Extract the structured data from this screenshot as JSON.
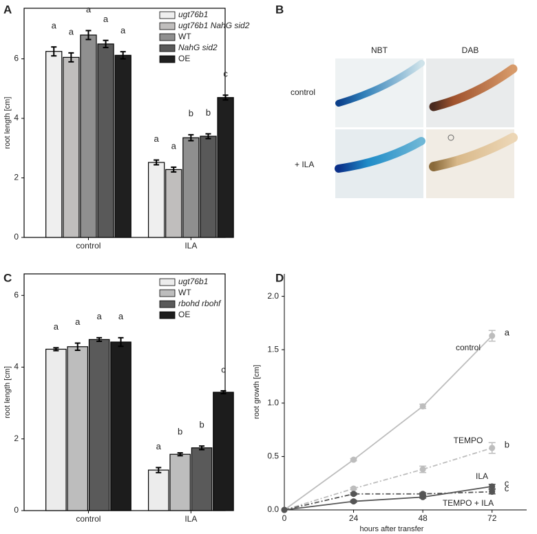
{
  "chart_data": [
    {
      "type": "bar",
      "panel": "A",
      "y_label": "root length [cm]",
      "categories": [
        "control",
        "ILA"
      ],
      "ylim": [
        0,
        7.7
      ],
      "yticks": [
        0,
        2,
        4,
        6
      ],
      "series": [
        {
          "name": "ugt76b1",
          "color": "#efefef",
          "values": [
            6.25,
            2.52
          ],
          "errors": [
            0.15,
            0.08
          ],
          "letters": [
            "a",
            "a"
          ]
        },
        {
          "name": "ugt76b1 NahG sid2",
          "color": "#c0bebd",
          "values": [
            6.05,
            2.28
          ],
          "errors": [
            0.15,
            0.08
          ],
          "letters": [
            "a",
            "a"
          ]
        },
        {
          "name": "WT",
          "color": "#8f8f8f",
          "values": [
            6.8,
            3.35
          ],
          "errors": [
            0.15,
            0.1
          ],
          "letters": [
            "a",
            "b"
          ]
        },
        {
          "name": "NahG sid2",
          "color": "#595959",
          "values": [
            6.5,
            3.4
          ],
          "errors": [
            0.12,
            0.08
          ],
          "letters": [
            "a",
            "b"
          ]
        },
        {
          "name": "OE",
          "color": "#1f1f1f",
          "values": [
            6.12,
            4.7
          ],
          "errors": [
            0.12,
            0.08
          ],
          "letters": [
            "a",
            "c"
          ]
        }
      ]
    },
    {
      "type": "bar",
      "panel": "C",
      "y_label": "root length [cm]",
      "categories": [
        "control",
        "ILA"
      ],
      "ylim": [
        0,
        6.6
      ],
      "yticks": [
        0,
        2,
        4,
        6
      ],
      "series": [
        {
          "name": "ugt76b1",
          "color": "#ececec",
          "values": [
            4.5,
            1.13
          ],
          "errors": [
            0.04,
            0.07
          ],
          "letters": [
            "a",
            "a"
          ]
        },
        {
          "name": "WT",
          "color": "#bdbdbd",
          "values": [
            4.57,
            1.57
          ],
          "errors": [
            0.1,
            0.04
          ],
          "letters": [
            "a",
            "b"
          ]
        },
        {
          "name": "rbohd rbohf",
          "color": "#5a5a5a",
          "values": [
            4.77,
            1.75
          ],
          "errors": [
            0.05,
            0.05
          ],
          "letters": [
            "a",
            "b"
          ]
        },
        {
          "name": "OE",
          "color": "#1c1c1c",
          "values": [
            4.7,
            3.3
          ],
          "errors": [
            0.12,
            0.04
          ],
          "letters": [
            "a",
            "c"
          ]
        }
      ]
    },
    {
      "type": "line",
      "panel": "D",
      "x_label": "hours after transfer",
      "y_label": "root growth [cm]",
      "x": [
        0,
        24,
        48,
        72
      ],
      "xlim": [
        0,
        84
      ],
      "xticks": [
        0,
        24,
        48,
        72
      ],
      "ylim": [
        0,
        2.21
      ],
      "yticks": [
        {
          "value": 0,
          "label": "0.0"
        },
        {
          "value": 0.5,
          "label": "0.5"
        },
        {
          "value": 1,
          "label": "1.0"
        },
        {
          "value": 1.5,
          "label": "1.5"
        },
        {
          "value": 2,
          "label": "2.0"
        }
      ],
      "series": [
        {
          "name": "control",
          "color": "#bdbdbd",
          "dashed": false,
          "values": [
            0,
            0.47,
            0.97,
            1.63
          ],
          "errors": [
            0,
            0.01,
            0.02,
            0.05
          ],
          "letter": "a"
        },
        {
          "name": "TEMPO",
          "color": "#bdbdbd",
          "dashed": true,
          "values": [
            0,
            0.2,
            0.38,
            0.58
          ],
          "errors": [
            0,
            0.01,
            0.03,
            0.05
          ],
          "letter": "b"
        },
        {
          "name": "ILA",
          "color": "#555555",
          "dashed": false,
          "values": [
            0,
            0.08,
            0.12,
            0.22
          ],
          "errors": [
            0,
            0.01,
            0.01,
            0.02
          ],
          "letter": "c"
        },
        {
          "name": "TEMPO + ILA",
          "color": "#555555",
          "dashed": true,
          "values": [
            0,
            0.15,
            0.15,
            0.17
          ],
          "errors": [
            0,
            0.01,
            0.01,
            0.02
          ],
          "letter": "c"
        }
      ]
    }
  ],
  "image_panel": {
    "panel": "B",
    "columns": [
      "NBT",
      "DAB"
    ],
    "rows": [
      "control",
      "+ ILA"
    ]
  }
}
